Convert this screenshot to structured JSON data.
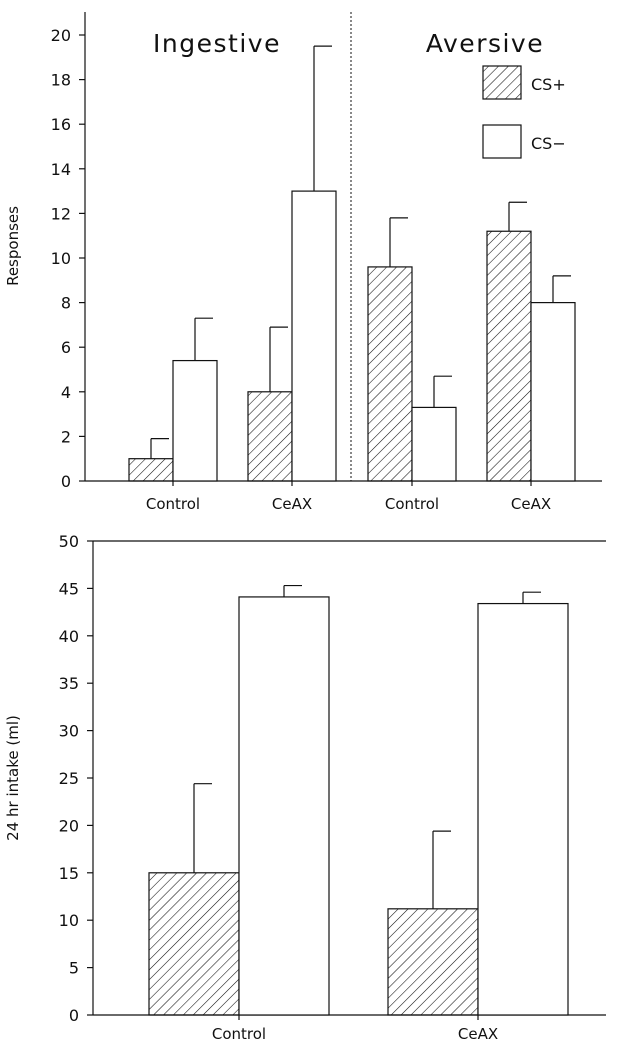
{
  "chart_data": [
    {
      "type": "bar",
      "ylabel": "Responses",
      "xlabel": "",
      "ylim": [
        0,
        20
      ],
      "yticks": [
        0,
        2,
        4,
        6,
        8,
        10,
        12,
        14,
        16,
        18,
        20
      ],
      "groups": [
        {
          "title": "Ingestive",
          "categories": [
            "Control",
            "CeAX"
          ]
        },
        {
          "title": "Aversive",
          "categories": [
            "Control",
            "CeAX"
          ]
        }
      ],
      "categories": [
        "Control",
        "CeAX",
        "Control",
        "CeAX"
      ],
      "series": [
        {
          "name": "CS+",
          "pattern": "hatched",
          "values": [
            1.0,
            4.0,
            9.6,
            11.2
          ],
          "error": [
            0.9,
            2.9,
            2.2,
            1.3
          ]
        },
        {
          "name": "CS−",
          "pattern": "open",
          "values": [
            5.4,
            13.0,
            3.3,
            8.0
          ],
          "error": [
            1.9,
            6.5,
            1.4,
            1.2
          ]
        }
      ],
      "legend": {
        "position": "top-right"
      },
      "grid": false
    },
    {
      "type": "bar",
      "ylabel": "24 hr intake (ml)",
      "xlabel": "",
      "ylim": [
        0,
        50
      ],
      "yticks": [
        0,
        5,
        10,
        15,
        20,
        25,
        30,
        35,
        40,
        45,
        50
      ],
      "categories": [
        "Control",
        "CeAX"
      ],
      "series": [
        {
          "name": "CS+",
          "pattern": "hatched",
          "values": [
            15.0,
            11.2
          ],
          "error": [
            9.4,
            8.2
          ]
        },
        {
          "name": "CS−",
          "pattern": "open",
          "values": [
            44.1,
            43.4
          ],
          "error": [
            1.2,
            1.2
          ]
        }
      ],
      "grid": false
    }
  ]
}
